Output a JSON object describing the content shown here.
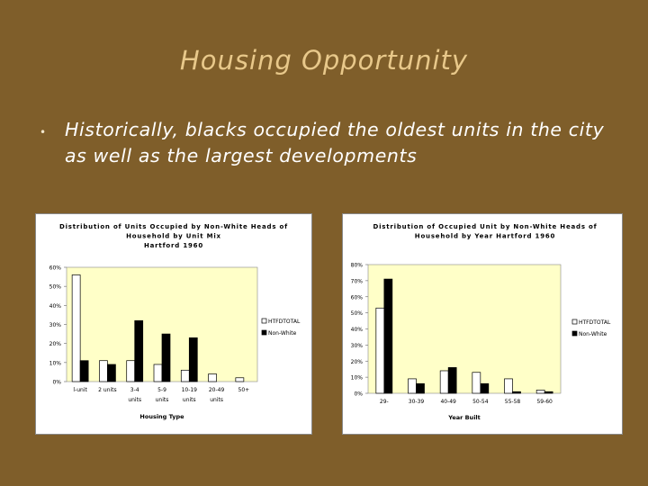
{
  "slide": {
    "title": "Housing Opportunity",
    "bullet": "Historically, blacks occupied the oldest units in the city as well as the largest developments"
  },
  "colors": {
    "background": "#7f5e2a",
    "title": "#e8c88a",
    "plot_area": "#ffffc8",
    "series_1": "#ffffff",
    "series_2": "#000000"
  },
  "chart_data": [
    {
      "type": "bar",
      "title": "Distribution of Units Occupied by Non-White Heads of Household by Unit Mix Hartford 1960",
      "title_lines": [
        "Distribution of Units Occupied by Non-White Heads of",
        "Household by Unit Mix",
        "Hartford 1960"
      ],
      "categories": [
        "l-unit",
        "2 units",
        "3-4 units",
        "5-9 units",
        "10-19 units",
        "20-49 units",
        "50+"
      ],
      "category_lines": [
        [
          "l-unit"
        ],
        [
          "2 units"
        ],
        [
          "3-4",
          "units"
        ],
        [
          "5-9",
          "units"
        ],
        [
          "10-19",
          "units"
        ],
        [
          "20-49",
          "units"
        ],
        [
          "50+"
        ]
      ],
      "series": [
        {
          "name": "HTFDTOTAL",
          "values": [
            56,
            11,
            11,
            9,
            6,
            4,
            2
          ]
        },
        {
          "name": "Non-White",
          "values": [
            11,
            9,
            32,
            25,
            23,
            0,
            0
          ]
        }
      ],
      "xlabel": "Housing Type",
      "ylabel": "",
      "ylim": [
        0,
        60
      ],
      "yticks": [
        0,
        10,
        20,
        30,
        40,
        50,
        60
      ],
      "ytick_labels": [
        "0%",
        "10%",
        "20%",
        "30%",
        "40%",
        "50%",
        "60%"
      ],
      "grid": false,
      "legend": "right"
    },
    {
      "type": "bar",
      "title": "Distribution of Occupied Unit by Non-White Heads of Household by Year Hartford 1960",
      "title_lines": [
        "Distribution of Occupied Unit by Non-White Heads of",
        "Household by Year Hartford 1960"
      ],
      "categories": [
        "29-",
        "30-39",
        "40-49",
        "50-54",
        "55-58",
        "59-60"
      ],
      "category_lines": [
        [
          "29-"
        ],
        [
          "30-39"
        ],
        [
          "40-49"
        ],
        [
          "50-54"
        ],
        [
          "55-58"
        ],
        [
          "59-60"
        ]
      ],
      "series": [
        {
          "name": "HTFDTOTAL",
          "values": [
            53,
            9,
            14,
            13,
            9,
            2
          ]
        },
        {
          "name": "Non-White",
          "values": [
            71,
            6,
            16,
            6,
            1,
            1
          ]
        }
      ],
      "xlabel": "Year Built",
      "ylabel": "",
      "ylim": [
        0,
        80
      ],
      "yticks": [
        0,
        10,
        20,
        30,
        40,
        50,
        60,
        70,
        80
      ],
      "ytick_labels": [
        "0%",
        "10%",
        "20%",
        "30%",
        "40%",
        "50%",
        "60%",
        "70%",
        "80%"
      ],
      "grid": false,
      "legend": "right"
    }
  ]
}
